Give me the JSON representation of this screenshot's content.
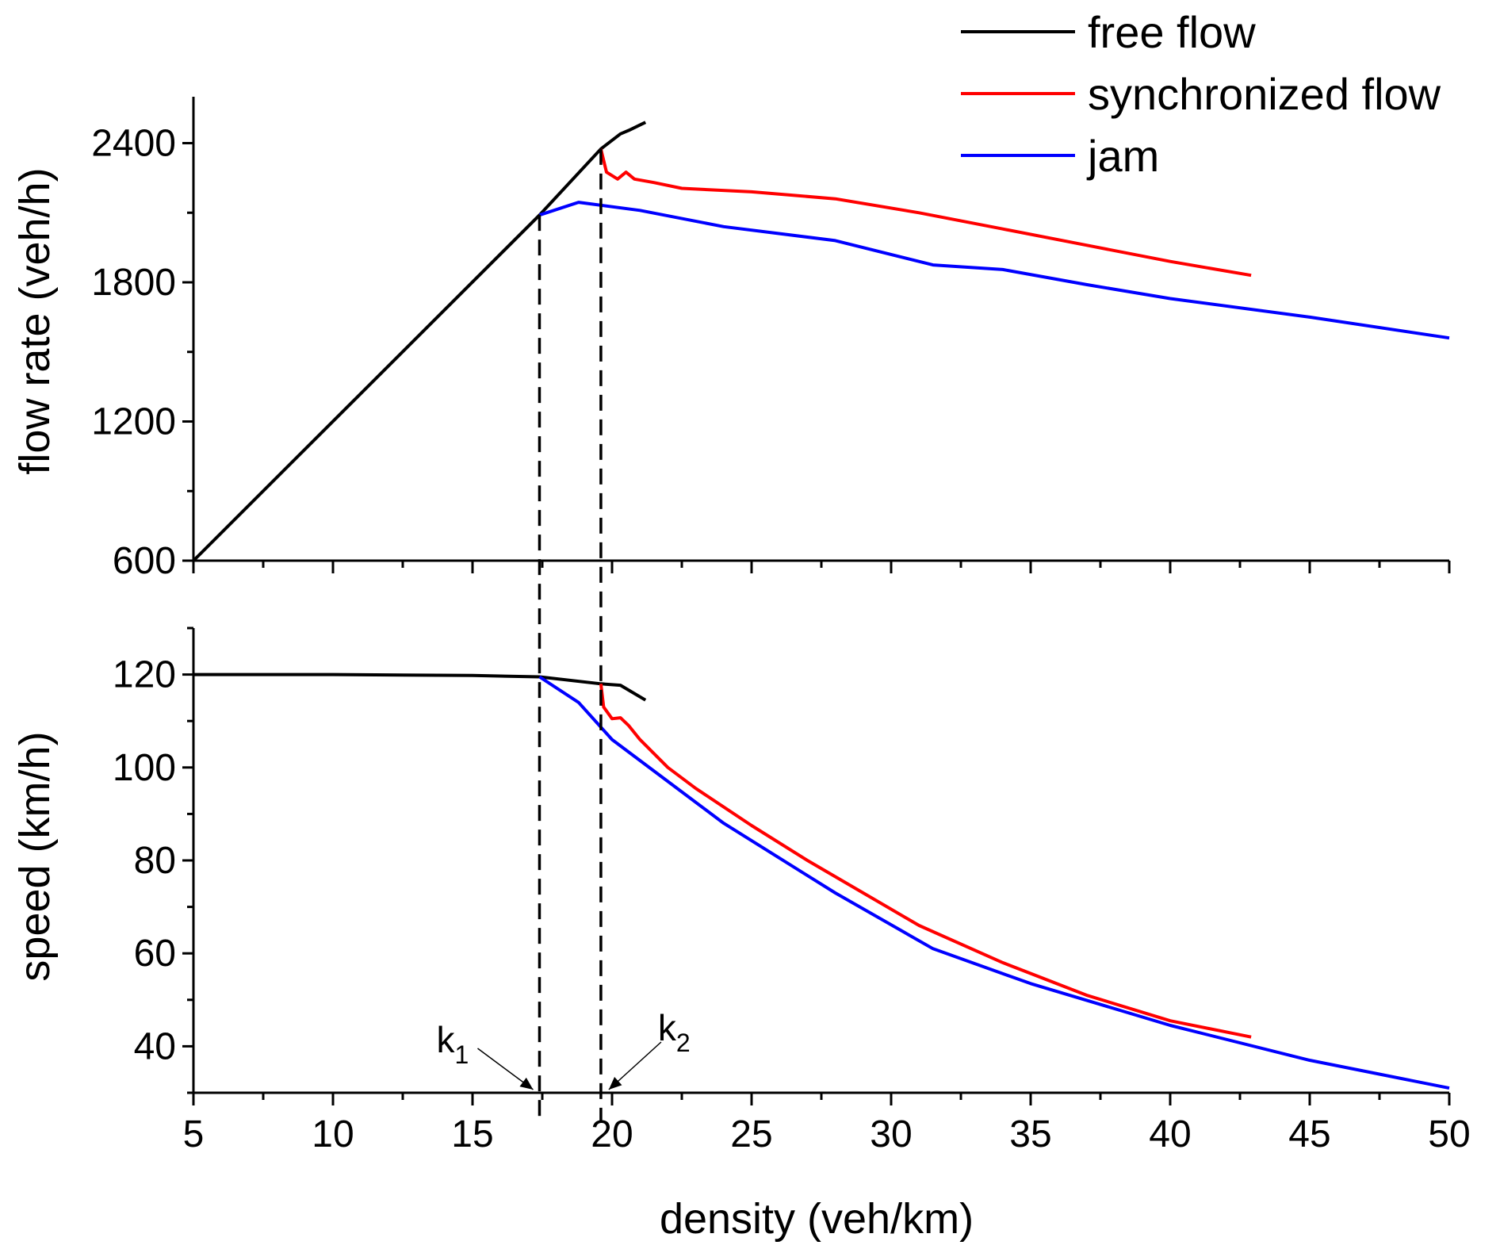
{
  "chart_data": [
    {
      "type": "line",
      "panel": "top",
      "ylabel": "flow rate (veh/h)",
      "xlim": [
        5,
        50
      ],
      "ylim": [
        600,
        2600
      ],
      "y_ticks": [
        600,
        1200,
        1800,
        2400
      ],
      "series": [
        {
          "name": "free flow",
          "color": "#000000",
          "x": [
            5,
            17.4,
            19.6,
            20.3,
            20.6,
            21.2
          ],
          "y": [
            600,
            2090,
            2375,
            2440,
            2455,
            2490
          ]
        },
        {
          "name": "synchronized flow",
          "color": "#ff0000",
          "x": [
            19.6,
            19.8,
            20.2,
            20.5,
            20.8,
            21.5,
            22.5,
            25,
            28,
            31,
            34,
            37,
            40,
            42.9
          ],
          "y": [
            2375,
            2275,
            2245,
            2275,
            2245,
            2230,
            2205,
            2190,
            2160,
            2100,
            2030,
            1960,
            1890,
            1830
          ]
        },
        {
          "name": "jam",
          "color": "#0000ff",
          "x": [
            17.4,
            18.8,
            21,
            24,
            28,
            31.5,
            34,
            37,
            40,
            45,
            50
          ],
          "y": [
            2090,
            2145,
            2110,
            2040,
            1980,
            1875,
            1855,
            1790,
            1730,
            1650,
            1560
          ]
        }
      ],
      "vlines": [
        17.4,
        19.6
      ],
      "legend_position": "top-right"
    },
    {
      "type": "line",
      "panel": "bottom",
      "xlabel": "density (veh/km)",
      "ylabel": "speed (km/h)",
      "xlim": [
        5,
        50
      ],
      "ylim": [
        30,
        130
      ],
      "x_ticks": [
        5,
        10,
        15,
        20,
        25,
        30,
        35,
        40,
        45,
        50
      ],
      "y_ticks": [
        40,
        60,
        80,
        100,
        120
      ],
      "series": [
        {
          "name": "free flow",
          "color": "#000000",
          "x": [
            5,
            10,
            15,
            17.4,
            19.6,
            20.3,
            21.2
          ],
          "y": [
            120,
            120,
            119.8,
            119.5,
            118,
            117.7,
            114.5
          ]
        },
        {
          "name": "synchronized flow",
          "color": "#ff0000",
          "x": [
            19.6,
            19.7,
            20.0,
            20.3,
            20.6,
            21,
            22,
            23,
            25,
            27,
            29,
            31,
            34,
            37,
            40,
            42.9
          ],
          "y": [
            118,
            113,
            110.5,
            110.7,
            109,
            106,
            100,
            95.5,
            87.5,
            80,
            73,
            66,
            58,
            51,
            45.5,
            42
          ]
        },
        {
          "name": "jam",
          "color": "#0000ff",
          "x": [
            17.4,
            18.8,
            20,
            22,
            24,
            26,
            28,
            31.5,
            35,
            40,
            45,
            50
          ],
          "y": [
            119.5,
            114,
            106,
            97,
            88,
            80.5,
            73,
            61,
            53.5,
            44.5,
            37,
            31
          ]
        }
      ],
      "vlines": [
        17.4,
        19.6
      ],
      "annotations": [
        {
          "id": "k1",
          "text": "k",
          "sub": "1",
          "x": 17.4
        },
        {
          "id": "k2",
          "text": "k",
          "sub": "2",
          "x": 19.6
        }
      ]
    }
  ],
  "legend": [
    {
      "label": "free flow",
      "color": "#000000"
    },
    {
      "label": "synchronized flow",
      "color": "#ff0000"
    },
    {
      "label": "jam",
      "color": "#0000ff"
    }
  ]
}
